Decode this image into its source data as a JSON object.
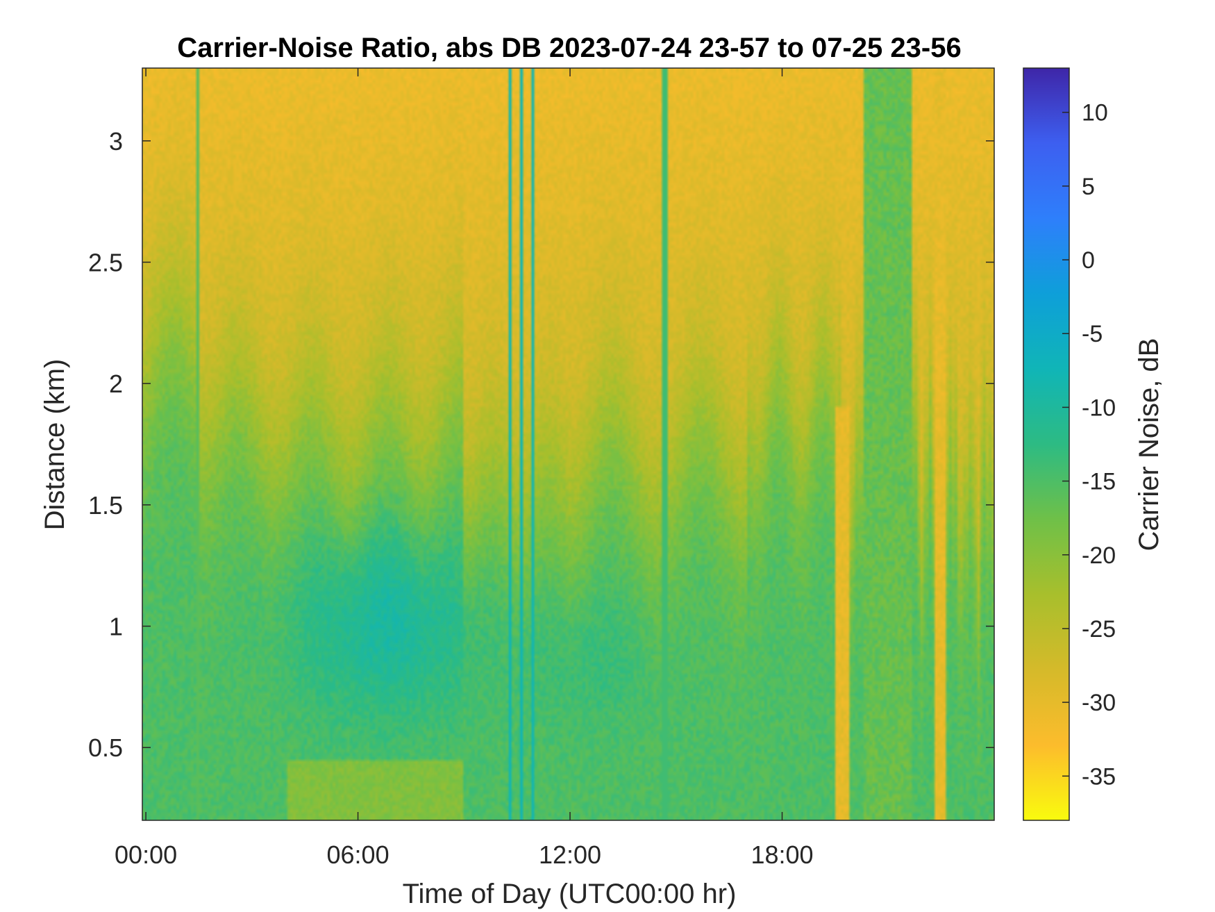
{
  "chart_data": {
    "type": "heatmap",
    "title": "Carrier-Noise Ratio, abs DB 2023-07-24 23-57 to 07-25 23-56",
    "xlabel": "Time of Day (UTC00:00 hr)",
    "ylabel": "Distance (km)",
    "xlim_hours": [
      -0.1,
      24.0
    ],
    "ylim_km": [
      0.2,
      3.3
    ],
    "x_ticks": [
      {
        "value": 0,
        "label": "00:00"
      },
      {
        "value": 6,
        "label": "06:00"
      },
      {
        "value": 12,
        "label": "12:00"
      },
      {
        "value": 18,
        "label": "18:00"
      }
    ],
    "y_ticks": [
      {
        "value": 0.5,
        "label": "0.5"
      },
      {
        "value": 1,
        "label": "1"
      },
      {
        "value": 1.5,
        "label": "1.5"
      },
      {
        "value": 2,
        "label": "2"
      },
      {
        "value": 2.5,
        "label": "2.5"
      },
      {
        "value": 3,
        "label": "3"
      }
    ],
    "colorbar": {
      "label": "Carrier Noise, dB",
      "range": [
        -38,
        13
      ],
      "ticks": [
        10,
        5,
        0,
        -5,
        -10,
        -15,
        -20,
        -25,
        -30,
        -35
      ],
      "tick_labels": [
        "10",
        "5",
        "0",
        "-5",
        "-10",
        "-15",
        "-20",
        "-25",
        "-30",
        "-35"
      ],
      "colormap": "parula",
      "colormap_stops": [
        "#f9fb0e",
        "#fcbc2c",
        "#d5ba2a",
        "#a8bf2c",
        "#6fc048",
        "#2dbb83",
        "#10b5b7",
        "#0e9fd9",
        "#2e7ffb",
        "#3d5ff0",
        "#3e26a8"
      ]
    },
    "description_values": {
      "background_upper_dB": -30,
      "boundary_layer_dB": -15,
      "core_minimum_dB": -10
    }
  }
}
